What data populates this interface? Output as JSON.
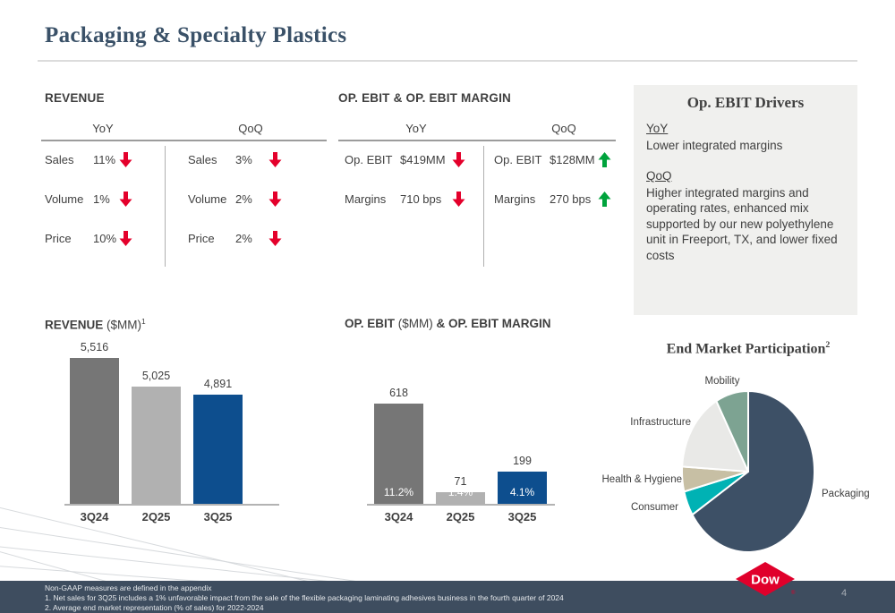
{
  "slide": {
    "title": "Packaging & Specialty Plastics",
    "page_number": "4"
  },
  "revenue_summary": {
    "heading": "REVENUE",
    "columns": [
      {
        "label": "YoY",
        "rows": [
          {
            "metric": "Sales",
            "value": "11%",
            "direction": "down"
          },
          {
            "metric": "Volume",
            "value": "1%",
            "direction": "down"
          },
          {
            "metric": "Price",
            "value": "10%",
            "direction": "down"
          }
        ]
      },
      {
        "label": "QoQ",
        "rows": [
          {
            "metric": "Sales",
            "value": "3%",
            "direction": "down"
          },
          {
            "metric": "Volume",
            "value": "2%",
            "direction": "down"
          },
          {
            "metric": "Price",
            "value": "2%",
            "direction": "down"
          }
        ]
      }
    ]
  },
  "ebit_summary": {
    "heading": "OP. EBIT & OP. EBIT MARGIN",
    "columns": [
      {
        "label": "YoY",
        "rows": [
          {
            "metric": "Op. EBIT",
            "value": "$419MM",
            "direction": "down"
          },
          {
            "metric": "Margins",
            "value": "710 bps",
            "direction": "down"
          }
        ]
      },
      {
        "label": "QoQ",
        "rows": [
          {
            "metric": "Op. EBIT",
            "value": "$128MM",
            "direction": "up"
          },
          {
            "metric": "Margins",
            "value": "270 bps",
            "direction": "up"
          }
        ]
      }
    ]
  },
  "drivers": {
    "title": "Op. EBIT Drivers",
    "sections": [
      {
        "label": "YoY",
        "text": "Lower integrated margins"
      },
      {
        "label": "QoQ",
        "text": "Higher integrated margins and operating rates, enhanced mix supported by our new polyethylene unit in Freeport, TX, and lower fixed costs"
      }
    ]
  },
  "chart_data": [
    {
      "type": "bar",
      "title_runs": [
        {
          "text": "REVENUE",
          "bold": true
        },
        {
          "text": " ($MM)",
          "bold": false
        },
        {
          "text": "1",
          "bold": false,
          "sup": true
        }
      ],
      "categories": [
        "3Q24",
        "2Q25",
        "3Q25"
      ],
      "values": [
        5516,
        5025,
        4891
      ],
      "value_labels": [
        "5,516",
        "5,025",
        "4,891"
      ],
      "bar_colors": [
        "#767676",
        "#b1b1b1",
        "#0d4e8e"
      ],
      "ylim": [
        3000,
        5600
      ],
      "grid": false
    },
    {
      "type": "bar",
      "title_runs": [
        {
          "text": "OP. EBIT ",
          "bold": true
        },
        {
          "text": "($MM)",
          "bold": false
        },
        {
          "text": " & OP. EBIT MARGIN",
          "bold": true
        }
      ],
      "categories": [
        "3Q24",
        "2Q25",
        "3Q25"
      ],
      "values": [
        618,
        71,
        199
      ],
      "value_labels": [
        "618",
        "71",
        "199"
      ],
      "margin_labels": [
        "11.2%",
        "1.4%",
        "4.1%"
      ],
      "bar_colors": [
        "#767676",
        "#b1b1b1",
        "#0d4e8e"
      ],
      "ylim": [
        0,
        640
      ],
      "grid": false
    },
    {
      "type": "pie",
      "title": "End Market Participation",
      "title_superscript": "2",
      "start_angle_deg": 0,
      "direction": "clockwise",
      "slices": [
        {
          "label": "Packaging",
          "value": 66,
          "color": "#3d5066"
        },
        {
          "label": "Consumer",
          "value": 5,
          "color": "#00b2b4"
        },
        {
          "label": "Health & Hygiene",
          "value": 5,
          "color": "#c7bfa4"
        },
        {
          "label": "Infrastructure",
          "value": 16,
          "color": "#e9e9e7"
        },
        {
          "label": "Mobility",
          "value": 8,
          "color": "#7da392"
        }
      ]
    }
  ],
  "footer": {
    "notes": [
      "Non-GAAP measures are defined in the appendix",
      "1. Net sales for 3Q25 includes a 1% unfavorable impact from the sale of the flexible packaging laminating adhesives business in the fourth quarter of 2024",
      "2. Average end market representation (% of sales) for 2022-2024"
    ],
    "logo_text": "Dow",
    "page_number": "4"
  },
  "colors": {
    "arrow_down": "#e4002b",
    "arrow_up": "#00a33c",
    "logo_red": "#e0002b",
    "footer_bg": "#3e4d5f",
    "title_blue": "#3a5168"
  }
}
